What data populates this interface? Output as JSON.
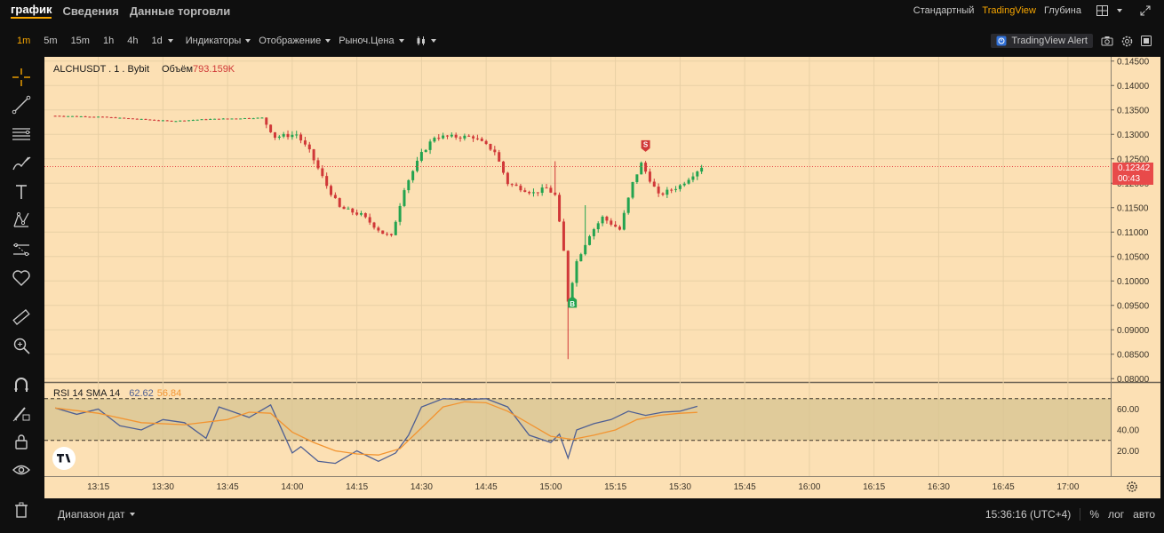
{
  "top_tabs": [
    {
      "label": "график",
      "active": true
    },
    {
      "label": "Сведения",
      "active": false
    },
    {
      "label": "Данные торговли",
      "active": false
    }
  ],
  "chart_modes": [
    {
      "label": "Стандартный",
      "active": false
    },
    {
      "label": "TradingView",
      "active": true
    },
    {
      "label": "Глубина",
      "active": false
    }
  ],
  "top_icons": [
    "layout-grid-icon",
    "expand-icon"
  ],
  "timeframes": [
    {
      "label": "1m",
      "active": true
    },
    {
      "label": "5m",
      "active": false
    },
    {
      "label": "15m",
      "active": false
    },
    {
      "label": "1h",
      "active": false
    },
    {
      "label": "4h",
      "active": false
    },
    {
      "label": "1d",
      "active": false
    }
  ],
  "toolbar_dropdowns": {
    "indicators": "Индикаторы",
    "display": "Отображение",
    "price_type": "Рыноч.Цена"
  },
  "tv_alert_label": "TradingView Alert",
  "chart_legend": {
    "symbol": "ALCHUSDT . 1 . Bybit",
    "volume_label": "Объём",
    "volume_value": "793.159K"
  },
  "rsi_legend": {
    "label": "RSI 14 SMA 14",
    "rsi_value": "62.62",
    "sma_value": "56.84"
  },
  "markers": {
    "sell": "S",
    "buy": "B"
  },
  "last_price": {
    "value": "0.12342",
    "countdown": "00:43"
  },
  "bottom_bar": {
    "date_range": "Диапазон дат",
    "clock": "15:36:16 (UTC+4)",
    "percent": "%",
    "log": "лог",
    "auto": "авто"
  },
  "colors": {
    "accent": "#f7a600",
    "up_candle": "#23a34f",
    "down_candle": "#d03838",
    "chart_bg": "#fce0b4",
    "rsi_line": "#4e5f93",
    "sma_line": "#f29431",
    "price_tag": "#e84a4a"
  },
  "chart_data": {
    "type": "candlestick",
    "symbol": "ALCHUSDT",
    "interval": "1m",
    "price_axis_ticks": [
      "0.14500",
      "0.14000",
      "0.13500",
      "0.13000",
      "0.12500",
      "0.12000",
      "0.11500",
      "0.11000",
      "0.10500",
      "0.10000",
      "0.09500",
      "0.09000",
      "0.08500",
      "0.08000"
    ],
    "time_axis_ticks": [
      "13:15",
      "13:30",
      "13:45",
      "14:00",
      "14:15",
      "14:30",
      "14:45",
      "15:00",
      "15:15",
      "15:30",
      "15:45",
      "16:00",
      "16:15",
      "16:30",
      "16:45",
      "17:00"
    ],
    "ylim": [
      0.0795,
      0.1455
    ],
    "close_path": [
      {
        "t": "13:05",
        "p": 0.1338
      },
      {
        "t": "13:15",
        "p": 0.1336
      },
      {
        "t": "13:25",
        "p": 0.1331
      },
      {
        "t": "13:32",
        "p": 0.1327
      },
      {
        "t": "13:40",
        "p": 0.1331
      },
      {
        "t": "13:53",
        "p": 0.1334
      },
      {
        "t": "13:56",
        "p": 0.1295
      },
      {
        "t": "14:01",
        "p": 0.13
      },
      {
        "t": "14:04",
        "p": 0.1265
      },
      {
        "t": "14:08",
        "p": 0.1195
      },
      {
        "t": "14:11",
        "p": 0.115
      },
      {
        "t": "14:16",
        "p": 0.1135
      },
      {
        "t": "14:21",
        "p": 0.1098
      },
      {
        "t": "14:23",
        "p": 0.109
      },
      {
        "t": "14:26",
        "p": 0.119
      },
      {
        "t": "14:30",
        "p": 0.126
      },
      {
        "t": "14:33",
        "p": 0.1295
      },
      {
        "t": "14:36",
        "p": 0.1295
      },
      {
        "t": "14:42",
        "p": 0.1295
      },
      {
        "t": "14:47",
        "p": 0.1265
      },
      {
        "t": "14:50",
        "p": 0.12
      },
      {
        "t": "14:56",
        "p": 0.118
      },
      {
        "t": "14:59",
        "p": 0.119
      },
      {
        "t": "15:01",
        "p": 0.1175
      },
      {
        "t": "15:03",
        "p": 0.106
      },
      {
        "t": "15:04",
        "p": 0.096
      },
      {
        "t": "15:06",
        "p": 0.104
      },
      {
        "t": "15:09",
        "p": 0.1095
      },
      {
        "t": "15:12",
        "p": 0.113
      },
      {
        "t": "15:16",
        "p": 0.1105
      },
      {
        "t": "15:19",
        "p": 0.12
      },
      {
        "t": "15:21",
        "p": 0.124
      },
      {
        "t": "15:25",
        "p": 0.1175
      },
      {
        "t": "15:30",
        "p": 0.1195
      },
      {
        "t": "15:35",
        "p": 0.1234
      }
    ],
    "rsi": {
      "name": "RSI 14",
      "ticks": [
        "60.00",
        "40.00",
        "20.00"
      ],
      "bands": [
        70,
        30
      ],
      "rsi_path": [
        [
          13.05,
          61
        ],
        [
          13.1,
          55
        ],
        [
          13.15,
          60
        ],
        [
          13.2,
          44
        ],
        [
          13.25,
          40
        ],
        [
          13.3,
          50
        ],
        [
          13.35,
          47
        ],
        [
          13.4,
          32
        ],
        [
          13.43,
          62
        ],
        [
          13.5,
          52
        ],
        [
          13.55,
          64
        ],
        [
          14.0,
          18
        ],
        [
          14.02,
          24
        ],
        [
          14.06,
          10
        ],
        [
          14.1,
          8
        ],
        [
          14.15,
          20
        ],
        [
          14.2,
          10
        ],
        [
          14.24,
          18
        ],
        [
          14.27,
          35
        ],
        [
          14.3,
          62
        ],
        [
          14.35,
          70
        ],
        [
          14.4,
          69
        ],
        [
          14.45,
          70
        ],
        [
          14.5,
          62
        ],
        [
          14.55,
          35
        ],
        [
          15.0,
          28
        ],
        [
          15.02,
          36
        ],
        [
          15.04,
          13
        ],
        [
          15.06,
          40
        ],
        [
          15.1,
          46
        ],
        [
          15.14,
          50
        ],
        [
          15.18,
          58
        ],
        [
          15.22,
          54
        ],
        [
          15.26,
          57
        ],
        [
          15.3,
          58
        ],
        [
          15.34,
          62.62
        ]
      ],
      "sma_path": [
        [
          13.05,
          61
        ],
        [
          13.15,
          56
        ],
        [
          13.25,
          47
        ],
        [
          13.35,
          45
        ],
        [
          13.45,
          50
        ],
        [
          13.5,
          57
        ],
        [
          13.55,
          56
        ],
        [
          14.0,
          38
        ],
        [
          14.05,
          28
        ],
        [
          14.1,
          20
        ],
        [
          14.15,
          17
        ],
        [
          14.2,
          16
        ],
        [
          14.25,
          22
        ],
        [
          14.3,
          42
        ],
        [
          14.35,
          62
        ],
        [
          14.4,
          67
        ],
        [
          14.45,
          66
        ],
        [
          14.5,
          58
        ],
        [
          14.55,
          46
        ],
        [
          15.0,
          34
        ],
        [
          15.05,
          31
        ],
        [
          15.1,
          35
        ],
        [
          15.15,
          40
        ],
        [
          15.2,
          50
        ],
        [
          15.25,
          54
        ],
        [
          15.3,
          56
        ],
        [
          15.34,
          56.84
        ]
      ]
    }
  }
}
